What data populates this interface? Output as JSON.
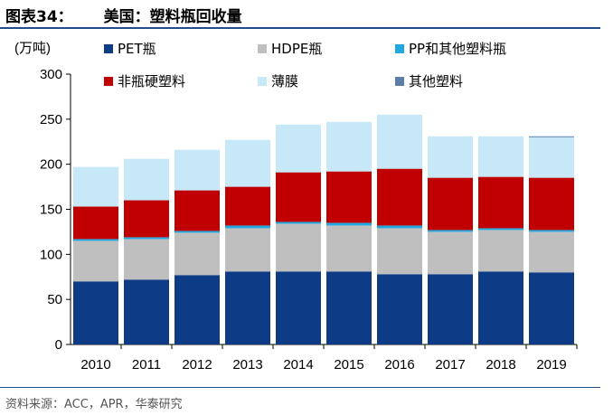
{
  "header": {
    "figure_label": "图表34：",
    "title": "美国：塑料瓶回收量"
  },
  "source": "资料来源：ACC，APR，华泰研究",
  "chart_data": {
    "type": "bar",
    "stacked": true,
    "ylabel": "(万吨)",
    "ylim": [
      0,
      300
    ],
    "yticks": [
      0,
      50,
      100,
      150,
      200,
      250,
      300
    ],
    "legend_position": "top",
    "categories": [
      "2010",
      "2011",
      "2012",
      "2013",
      "2014",
      "2015",
      "2016",
      "2017",
      "2018",
      "2019"
    ],
    "series": [
      {
        "name": "PET瓶",
        "color": "#0d3b86",
        "values": [
          70,
          72,
          77,
          81,
          81,
          81,
          78,
          78,
          81,
          80
        ]
      },
      {
        "name": "HDPE瓶",
        "color": "#bfbfbf",
        "values": [
          45,
          45,
          47,
          48,
          53,
          51,
          51,
          47,
          46,
          45
        ]
      },
      {
        "name": "PP和其他塑料瓶",
        "color": "#21a8e0",
        "values": [
          2,
          2,
          2,
          3,
          2,
          3,
          3,
          2,
          2,
          2
        ]
      },
      {
        "name": "非瓶硬塑料",
        "color": "#c00000",
        "values": [
          36,
          41,
          45,
          43,
          55,
          57,
          63,
          58,
          57,
          58
        ]
      },
      {
        "name": "薄膜",
        "color": "#c6e8f7",
        "values": [
          44,
          46,
          45,
          52,
          53,
          55,
          60,
          46,
          45,
          45
        ]
      },
      {
        "name": "其他塑料",
        "color": "#5b7ea8",
        "values": [
          0,
          0,
          0,
          0,
          0,
          0,
          0,
          0,
          0,
          1
        ]
      }
    ],
    "grid": false
  }
}
